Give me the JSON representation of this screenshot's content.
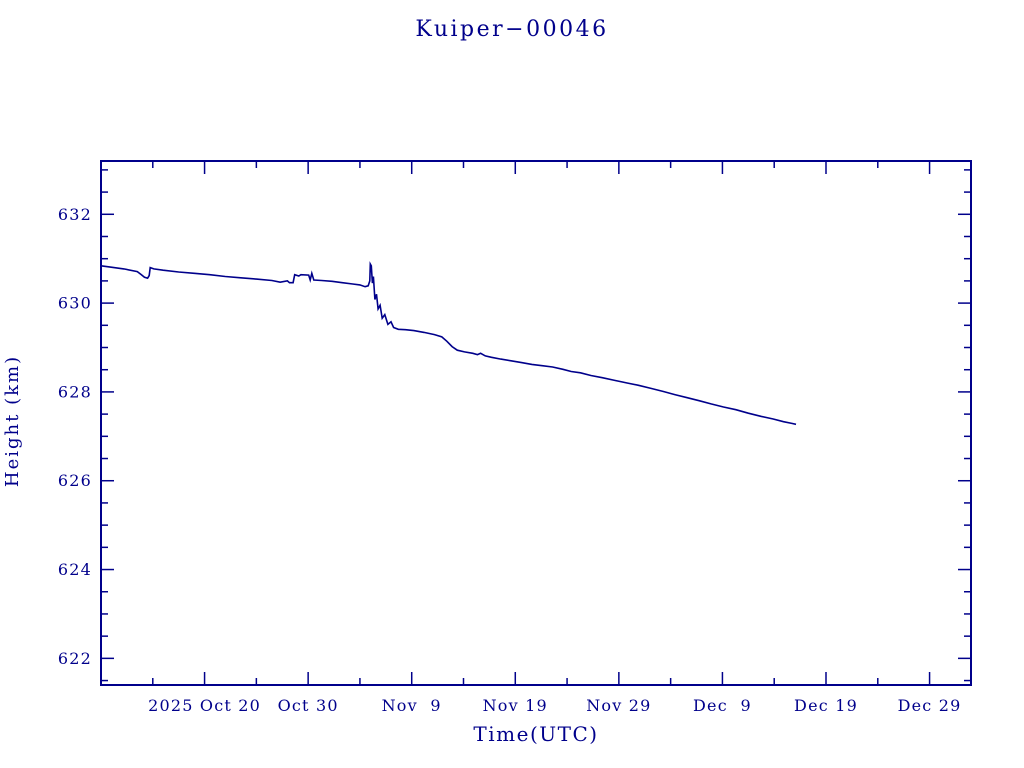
{
  "chart_data": {
    "type": "line",
    "title": "Kuiper−00046",
    "xlabel": "Time(UTC)",
    "ylabel": "Height (km)",
    "line_color": "#00008B",
    "axes_color": "#00008B",
    "background": "#ffffff",
    "legend": "none",
    "grid": "off",
    "x_axis": {
      "unit": "days since 2025 Oct 10 (UTC)",
      "range": [
        0,
        84
      ],
      "major_ticks": [
        {
          "day": 10,
          "label": "2025 Oct 20"
        },
        {
          "day": 20,
          "label": "Oct 30"
        },
        {
          "day": 30,
          "label": "Nov  9"
        },
        {
          "day": 40,
          "label": "Nov 19"
        },
        {
          "day": 50,
          "label": "Nov 29"
        },
        {
          "day": 60,
          "label": "Dec  9"
        },
        {
          "day": 70,
          "label": "Dec 19"
        },
        {
          "day": 80,
          "label": "Dec 29"
        }
      ],
      "minor_tick_days": [
        5,
        15,
        25,
        35,
        45,
        55,
        65,
        75
      ]
    },
    "y_axis": {
      "range": [
        621.4,
        633.2
      ],
      "major_ticks": [
        622,
        624,
        626,
        628,
        630,
        632
      ],
      "minor_tick_step": 0.5
    },
    "series": [
      {
        "name": "height-km",
        "points": [
          [
            0,
            630.84
          ],
          [
            0.9,
            630.81
          ],
          [
            2.2,
            630.77
          ],
          [
            3.5,
            630.71
          ],
          [
            3.9,
            630.64
          ],
          [
            4.2,
            630.58
          ],
          [
            4.5,
            630.56
          ],
          [
            4.65,
            630.62
          ],
          [
            4.75,
            630.8
          ],
          [
            5.1,
            630.77
          ],
          [
            6,
            630.74
          ],
          [
            7.5,
            630.7
          ],
          [
            9,
            630.67
          ],
          [
            10.5,
            630.64
          ],
          [
            12,
            630.6
          ],
          [
            13.5,
            630.57
          ],
          [
            15,
            630.54
          ],
          [
            16.5,
            630.51
          ],
          [
            17.3,
            630.47
          ],
          [
            18,
            630.5
          ],
          [
            18.2,
            630.46
          ],
          [
            18.55,
            630.46
          ],
          [
            18.7,
            630.64
          ],
          [
            19.1,
            630.61
          ],
          [
            19.3,
            630.64
          ],
          [
            20.05,
            630.63
          ],
          [
            20.2,
            630.52
          ],
          [
            20.35,
            630.67
          ],
          [
            20.55,
            630.52
          ],
          [
            21.3,
            630.51
          ],
          [
            22.3,
            630.49
          ],
          [
            23.3,
            630.46
          ],
          [
            24.3,
            630.43
          ],
          [
            25,
            630.41
          ],
          [
            25.5,
            630.37
          ],
          [
            25.8,
            630.39
          ],
          [
            25.95,
            630.5
          ],
          [
            26.0,
            630.88
          ],
          [
            26.1,
            630.84
          ],
          [
            26.2,
            630.45
          ],
          [
            26.3,
            630.6
          ],
          [
            26.45,
            630.08
          ],
          [
            26.6,
            630.2
          ],
          [
            26.75,
            629.87
          ],
          [
            26.95,
            629.95
          ],
          [
            27.15,
            629.66
          ],
          [
            27.4,
            629.74
          ],
          [
            27.7,
            629.52
          ],
          [
            28,
            629.58
          ],
          [
            28.25,
            629.45
          ],
          [
            28.7,
            629.41
          ],
          [
            29.4,
            629.4
          ],
          [
            30.2,
            629.38
          ],
          [
            31.2,
            629.34
          ],
          [
            32.2,
            629.29
          ],
          [
            32.9,
            629.24
          ],
          [
            33.4,
            629.14
          ],
          [
            33.9,
            629.02
          ],
          [
            34.4,
            628.94
          ],
          [
            35.1,
            628.9
          ],
          [
            35.9,
            628.87
          ],
          [
            36.35,
            628.84
          ],
          [
            36.65,
            628.87
          ],
          [
            37.1,
            628.81
          ],
          [
            37.7,
            628.78
          ],
          [
            38.6,
            628.74
          ],
          [
            39.6,
            628.7
          ],
          [
            40.6,
            628.66
          ],
          [
            41.6,
            628.62
          ],
          [
            42.6,
            628.59
          ],
          [
            43.6,
            628.56
          ],
          [
            44.6,
            628.51
          ],
          [
            45.4,
            628.46
          ],
          [
            46.3,
            628.43
          ],
          [
            47.3,
            628.37
          ],
          [
            48.4,
            628.32
          ],
          [
            49.6,
            628.26
          ],
          [
            50.8,
            628.2
          ],
          [
            51.9,
            628.15
          ],
          [
            53.1,
            628.08
          ],
          [
            54.3,
            628.01
          ],
          [
            55.4,
            627.94
          ],
          [
            56.6,
            627.87
          ],
          [
            57.8,
            627.8
          ],
          [
            58.9,
            627.73
          ],
          [
            60.1,
            627.66
          ],
          [
            61.3,
            627.6
          ],
          [
            62.5,
            627.52
          ],
          [
            63.7,
            627.45
          ],
          [
            64.9,
            627.39
          ],
          [
            65.9,
            627.33
          ],
          [
            66.7,
            627.29
          ],
          [
            67.1,
            627.27
          ]
        ]
      }
    ]
  }
}
